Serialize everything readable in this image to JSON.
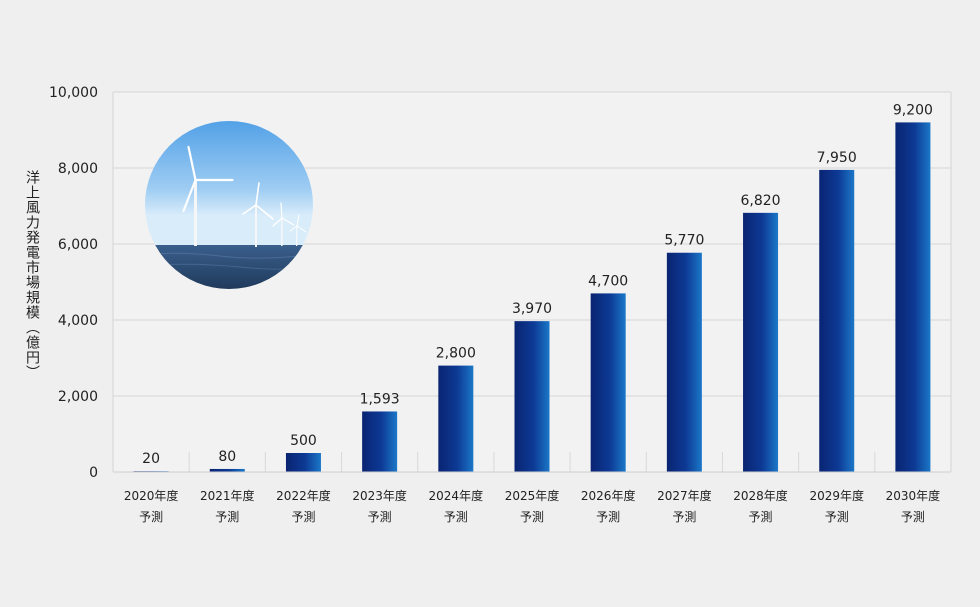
{
  "chart_data": {
    "type": "bar",
    "ylabel": "洋上風力発電市場規模（億円）",
    "xlabel": "",
    "categories": [
      [
        "2020年度",
        "予測"
      ],
      [
        "2021年度",
        "予測"
      ],
      [
        "2022年度",
        "予測"
      ],
      [
        "2023年度",
        "予測"
      ],
      [
        "2024年度",
        "予測"
      ],
      [
        "2025年度",
        "予測"
      ],
      [
        "2026年度",
        "予測"
      ],
      [
        "2027年度",
        "予測"
      ],
      [
        "2028年度",
        "予測"
      ],
      [
        "2029年度",
        "予測"
      ],
      [
        "2030年度",
        "予測"
      ]
    ],
    "values": [
      20,
      80,
      500,
      1593,
      2800,
      3970,
      4700,
      5770,
      6820,
      7950,
      9200
    ],
    "value_labels": [
      "20",
      "80",
      "500",
      "1,593",
      "2,800",
      "3,970",
      "4,700",
      "5,770",
      "6,820",
      "7,950",
      "9,200"
    ],
    "ylim": [
      0,
      10000
    ],
    "yticks": [
      0,
      2000,
      4000,
      6000,
      8000,
      10000
    ],
    "ytick_labels": [
      "0",
      "2,000",
      "4,000",
      "6,000",
      "8,000",
      "10,000"
    ],
    "grid": true,
    "colors": {
      "bar_dark": "#0a2a7a",
      "bar_light": "#1a6fc4",
      "grid": "#d6d6d6",
      "plot_bg": "#f2f2f2"
    }
  },
  "image": {
    "subject": "offshore-wind-turbines-photo"
  }
}
